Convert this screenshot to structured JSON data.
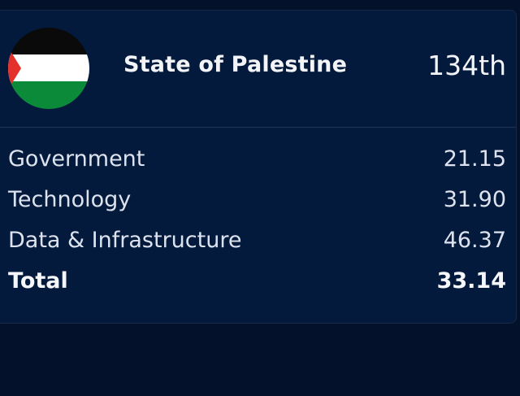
{
  "card": {
    "country": "State of Palestine",
    "rank": "134th",
    "flag": {
      "icon": "palestine-flag-icon",
      "colors": {
        "black": "#000000",
        "white": "#ffffff",
        "green": "#0b8a3a",
        "red": "#e4312b"
      }
    }
  },
  "scores": [
    {
      "label": "Government",
      "value": "21.15"
    },
    {
      "label": "Technology",
      "value": "31.90"
    },
    {
      "label": "Data & Infrastructure",
      "value": "46.37"
    }
  ],
  "total": {
    "label": "Total",
    "value": "33.14"
  },
  "theme": {
    "background": "#03112a",
    "card": "#041a3c",
    "divider": "#1f3456"
  }
}
